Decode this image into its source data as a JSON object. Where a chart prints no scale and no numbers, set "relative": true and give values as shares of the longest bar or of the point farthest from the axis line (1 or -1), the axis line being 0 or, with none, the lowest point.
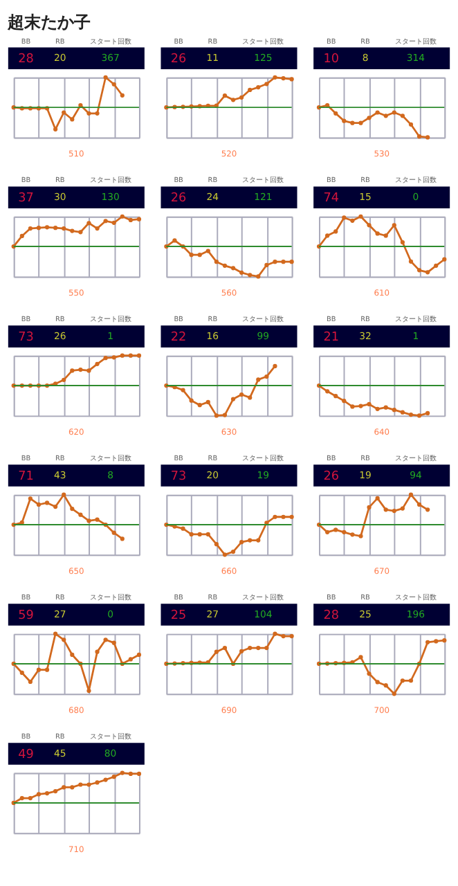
{
  "chart_data": [
    {
      "type": "line",
      "title": "超末たか子",
      "relative": true,
      "grid": true,
      "tick_labels": false,
      "marker": "circle",
      "categories": [
        null,
        null,
        null,
        null,
        null,
        null,
        null,
        null,
        null,
        null,
        null,
        null,
        null,
        null,
        null,
        null
      ],
      "series": [
        {
          "color": "#d2691e",
          "values": [
            0,
            -0.03,
            -0.03,
            -0.03,
            -0.03,
            -0.73,
            -0.17,
            -0.4,
            0.07,
            -0.2,
            -0.2,
            1,
            0.77,
            0.4,
            null,
            null
          ]
        }
      ],
      "ref_lines": [
        {
          "axis": "y",
          "value": 0,
          "color": "#2e8b2e"
        }
      ],
      "annotations": [
        "BB",
        "RB",
        "スタート回数",
        "28",
        "20",
        "367",
        "510"
      ]
    },
    {
      "type": "line",
      "relative": true,
      "grid": true,
      "tick_labels": false,
      "marker": "circle",
      "categories": [
        null,
        null,
        null,
        null,
        null,
        null,
        null,
        null,
        null,
        null,
        null,
        null,
        null,
        null,
        null,
        null
      ],
      "series": [
        {
          "color": "#d2691e",
          "values": [
            0,
            0.01,
            0.02,
            0.03,
            0.04,
            0.05,
            0.06,
            0.39,
            0.25,
            0.33,
            0.58,
            0.67,
            0.78,
            1,
            0.97,
            0.94
          ]
        }
      ],
      "ref_lines": [
        {
          "axis": "y",
          "value": 0,
          "color": "#2e8b2e"
        }
      ],
      "annotations": [
        "BB",
        "RB",
        "スタート回数",
        "26",
        "11",
        "125",
        "520"
      ]
    },
    {
      "type": "line",
      "relative": true,
      "grid": true,
      "tick_labels": false,
      "marker": "circle",
      "categories": [
        null,
        null,
        null,
        null,
        null,
        null,
        null,
        null,
        null,
        null,
        null,
        null,
        null,
        null,
        null,
        null
      ],
      "series": [
        {
          "color": "#d2691e",
          "values": [
            0,
            0.07,
            -0.2,
            -0.45,
            -0.52,
            -0.52,
            -0.35,
            -0.17,
            -0.28,
            -0.17,
            -0.28,
            -0.57,
            -0.97,
            -1,
            null,
            null
          ]
        }
      ],
      "ref_lines": [
        {
          "axis": "y",
          "value": 0,
          "color": "#2e8b2e"
        }
      ],
      "annotations": [
        "BB",
        "RB",
        "スタート回数",
        "10",
        "8",
        "314",
        "530"
      ]
    },
    {
      "type": "line",
      "relative": true,
      "grid": true,
      "tick_labels": false,
      "marker": "circle",
      "categories": [
        null,
        null,
        null,
        null,
        null,
        null,
        null,
        null,
        null,
        null,
        null,
        null,
        null,
        null,
        null,
        null
      ],
      "series": [
        {
          "color": "#d2691e",
          "values": [
            0,
            0.35,
            0.6,
            0.62,
            0.64,
            0.62,
            0.6,
            0.52,
            0.48,
            0.78,
            0.6,
            0.85,
            0.79,
            1,
            0.88,
            0.91
          ]
        }
      ],
      "ref_lines": [
        {
          "axis": "y",
          "value": 0,
          "color": "#2e8b2e"
        }
      ],
      "annotations": [
        "BB",
        "RB",
        "スタート回数",
        "37",
        "30",
        "130",
        "550"
      ]
    },
    {
      "type": "line",
      "relative": true,
      "grid": true,
      "tick_labels": false,
      "marker": "circle",
      "categories": [
        null,
        null,
        null,
        null,
        null,
        null,
        null,
        null,
        null,
        null,
        null,
        null,
        null,
        null,
        null,
        null
      ],
      "series": [
        {
          "color": "#d2691e",
          "values": [
            0,
            0.2,
            0,
            -0.28,
            -0.28,
            -0.15,
            -0.51,
            -0.64,
            -0.72,
            -0.87,
            -0.95,
            -1,
            -0.62,
            -0.51,
            -0.51,
            -0.51
          ]
        }
      ],
      "ref_lines": [
        {
          "axis": "y",
          "value": 0,
          "color": "#2e8b2e"
        }
      ],
      "annotations": [
        "BB",
        "RB",
        "スタート回数",
        "26",
        "24",
        "121",
        "560"
      ]
    },
    {
      "type": "line",
      "relative": true,
      "grid": true,
      "tick_labels": false,
      "marker": "circle",
      "categories": [
        null,
        null,
        null,
        null,
        null,
        null,
        null,
        null,
        null,
        null,
        null,
        null,
        null,
        null,
        null,
        null
      ],
      "series": [
        {
          "color": "#d2691e",
          "values": [
            0,
            0.36,
            0.5,
            0.96,
            0.86,
            1,
            0.71,
            0.43,
            0.36,
            0.71,
            0.14,
            -0.5,
            -0.79,
            -0.86,
            -0.64,
            -0.43
          ]
        }
      ],
      "ref_lines": [
        {
          "axis": "y",
          "value": 0,
          "color": "#2e8b2e"
        }
      ],
      "annotations": [
        "BB",
        "RB",
        "スタート回数",
        "74",
        "15",
        "0",
        "610"
      ]
    },
    {
      "type": "line",
      "relative": true,
      "grid": true,
      "tick_labels": false,
      "marker": "circle",
      "categories": [
        null,
        null,
        null,
        null,
        null,
        null,
        null,
        null,
        null,
        null,
        null,
        null,
        null,
        null,
        null,
        null
      ],
      "series": [
        {
          "color": "#d2691e",
          "values": [
            0,
            0,
            0,
            0,
            0,
            0.06,
            0.19,
            0.5,
            0.53,
            0.5,
            0.72,
            0.92,
            0.94,
            1,
            1,
            1
          ]
        }
      ],
      "ref_lines": [
        {
          "axis": "y",
          "value": 0,
          "color": "#2e8b2e"
        }
      ],
      "annotations": [
        "BB",
        "RB",
        "スタート回数",
        "73",
        "26",
        "1",
        "620"
      ]
    },
    {
      "type": "line",
      "relative": true,
      "grid": true,
      "tick_labels": false,
      "marker": "circle",
      "categories": [
        null,
        null,
        null,
        null,
        null,
        null,
        null,
        null,
        null,
        null,
        null,
        null,
        null,
        null,
        null,
        null
      ],
      "series": [
        {
          "color": "#d2691e",
          "values": [
            0,
            -0.05,
            -0.15,
            -0.5,
            -0.65,
            -0.55,
            -1,
            -0.98,
            -0.45,
            -0.3,
            -0.4,
            0.2,
            0.3,
            0.65,
            null,
            null
          ]
        }
      ],
      "ref_lines": [
        {
          "axis": "y",
          "value": 0,
          "color": "#2e8b2e"
        }
      ],
      "annotations": [
        "BB",
        "RB",
        "スタート回数",
        "22",
        "16",
        "99",
        "630"
      ]
    },
    {
      "type": "line",
      "relative": true,
      "grid": true,
      "tick_labels": false,
      "marker": "circle",
      "categories": [
        null,
        null,
        null,
        null,
        null,
        null,
        null,
        null,
        null,
        null,
        null,
        null,
        null,
        null,
        null,
        null
      ],
      "series": [
        {
          "color": "#d2691e",
          "values": [
            0,
            -0.19,
            -0.35,
            -0.51,
            -0.7,
            -0.68,
            -0.62,
            -0.78,
            -0.73,
            -0.81,
            -0.89,
            -0.97,
            -1,
            -0.92,
            null,
            null
          ]
        }
      ],
      "ref_lines": [
        {
          "axis": "y",
          "value": 0,
          "color": "#2e8b2e"
        }
      ],
      "annotations": [
        "BB",
        "RB",
        "スタート回数",
        "21",
        "32",
        "1",
        "640"
      ]
    },
    {
      "type": "line",
      "relative": true,
      "grid": true,
      "tick_labels": false,
      "marker": "circle",
      "categories": [
        null,
        null,
        null,
        null,
        null,
        null,
        null,
        null,
        null,
        null,
        null,
        null,
        null,
        null,
        null,
        null
      ],
      "series": [
        {
          "color": "#d2691e",
          "values": [
            0,
            0.07,
            0.87,
            0.67,
            0.73,
            0.6,
            1,
            0.53,
            0.33,
            0.13,
            0.17,
            0,
            -0.27,
            -0.47,
            null,
            null
          ]
        }
      ],
      "ref_lines": [
        {
          "axis": "y",
          "value": 0,
          "color": "#2e8b2e"
        }
      ],
      "annotations": [
        "BB",
        "RB",
        "スタート回数",
        "71",
        "43",
        "8",
        "650"
      ]
    },
    {
      "type": "line",
      "relative": true,
      "grid": true,
      "tick_labels": false,
      "marker": "circle",
      "categories": [
        null,
        null,
        null,
        null,
        null,
        null,
        null,
        null,
        null,
        null,
        null,
        null,
        null,
        null,
        null,
        null
      ],
      "series": [
        {
          "color": "#d2691e",
          "values": [
            0,
            -0.06,
            -0.13,
            -0.32,
            -0.32,
            -0.32,
            -0.65,
            -1,
            -0.9,
            -0.58,
            -0.52,
            -0.52,
            0.06,
            0.26,
            0.26,
            0.26
          ]
        }
      ],
      "ref_lines": [
        {
          "axis": "y",
          "value": 0,
          "color": "#2e8b2e"
        }
      ],
      "annotations": [
        "BB",
        "RB",
        "スタート回数",
        "73",
        "20",
        "19",
        "660"
      ]
    },
    {
      "type": "line",
      "relative": true,
      "grid": true,
      "tick_labels": false,
      "marker": "circle",
      "categories": [
        null,
        null,
        null,
        null,
        null,
        null,
        null,
        null,
        null,
        null,
        null,
        null,
        null,
        null,
        null,
        null
      ],
      "series": [
        {
          "color": "#d2691e",
          "values": [
            0,
            -0.25,
            -0.17,
            -0.25,
            -0.33,
            -0.38,
            0.58,
            0.88,
            0.5,
            0.46,
            0.54,
            1,
            0.67,
            0.5,
            null,
            null
          ]
        }
      ],
      "ref_lines": [
        {
          "axis": "y",
          "value": 0,
          "color": "#2e8b2e"
        }
      ],
      "annotations": [
        "BB",
        "RB",
        "スタート回数",
        "26",
        "19",
        "94",
        "670"
      ]
    },
    {
      "type": "line",
      "relative": true,
      "grid": true,
      "tick_labels": false,
      "marker": "circle",
      "categories": [
        null,
        null,
        null,
        null,
        null,
        null,
        null,
        null,
        null,
        null,
        null,
        null,
        null,
        null,
        null,
        null
      ],
      "series": [
        {
          "color": "#d2691e",
          "values": [
            0,
            -0.3,
            -0.6,
            -0.2,
            -0.2,
            1,
            0.8,
            0.3,
            0,
            -0.9,
            0.4,
            0.8,
            0.7,
            0,
            0.15,
            0.3
          ]
        }
      ],
      "ref_lines": [
        {
          "axis": "y",
          "value": 0,
          "color": "#2e8b2e"
        }
      ],
      "annotations": [
        "BB",
        "RB",
        "スタート回数",
        "59",
        "27",
        "0",
        "680"
      ]
    },
    {
      "type": "line",
      "relative": true,
      "grid": true,
      "tick_labels": false,
      "marker": "circle",
      "categories": [
        null,
        null,
        null,
        null,
        null,
        null,
        null,
        null,
        null,
        null,
        null,
        null,
        null,
        null,
        null,
        null
      ],
      "series": [
        {
          "color": "#d2691e",
          "values": [
            0,
            0.01,
            0.02,
            0.03,
            0.04,
            0.05,
            0.4,
            0.53,
            0,
            0.42,
            0.53,
            0.53,
            0.53,
            1,
            0.92,
            0.92
          ]
        }
      ],
      "ref_lines": [
        {
          "axis": "y",
          "value": 0,
          "color": "#2e8b2e"
        }
      ],
      "annotations": [
        "BB",
        "RB",
        "スタート回数",
        "25",
        "27",
        "104",
        "690"
      ]
    },
    {
      "type": "line",
      "relative": true,
      "grid": true,
      "tick_labels": false,
      "marker": "circle",
      "categories": [
        null,
        null,
        null,
        null,
        null,
        null,
        null,
        null,
        null,
        null,
        null,
        null,
        null,
        null,
        null,
        null
      ],
      "series": [
        {
          "color": "#d2691e",
          "values": [
            0,
            0.01,
            0.02,
            0.03,
            0.05,
            0.22,
            -0.33,
            -0.61,
            -0.72,
            -1,
            -0.56,
            -0.56,
            0,
            0.72,
            0.75,
            0.78
          ]
        }
      ],
      "ref_lines": [
        {
          "axis": "y",
          "value": 0,
          "color": "#2e8b2e"
        }
      ],
      "annotations": [
        "BB",
        "RB",
        "スタート回数",
        "28",
        "25",
        "196",
        "700"
      ]
    },
    {
      "type": "line",
      "relative": true,
      "grid": true,
      "tick_labels": false,
      "marker": "circle",
      "categories": [
        null,
        null,
        null,
        null,
        null,
        null,
        null,
        null,
        null,
        null,
        null,
        null,
        null,
        null,
        null,
        null
      ],
      "series": [
        {
          "color": "#d2691e",
          "values": [
            0,
            0.16,
            0.16,
            0.29,
            0.32,
            0.39,
            0.52,
            0.52,
            0.61,
            0.61,
            0.68,
            0.77,
            0.87,
            1,
            0.97,
            0.97
          ]
        }
      ],
      "ref_lines": [
        {
          "axis": "y",
          "value": 0,
          "color": "#2e8b2e"
        }
      ],
      "annotations": [
        "BB",
        "RB",
        "スタート回数",
        "49",
        "45",
        "80",
        "710"
      ]
    }
  ]
}
